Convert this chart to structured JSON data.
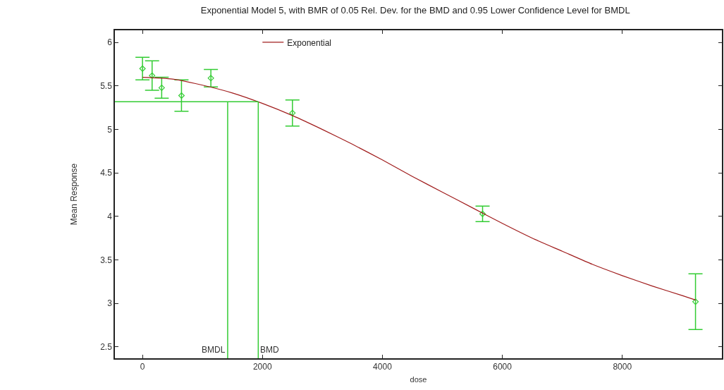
{
  "chart_data": {
    "type": "line",
    "title": "Exponential Model 5, with BMR of 0.05 Rel. Dev. for the BMD and 0.95 Lower Confidence Level for BMDL",
    "xlabel": "dose",
    "ylabel": "Mean Response",
    "xlim": [
      -460,
      9660
    ],
    "xticks": [
      0,
      2000,
      4000,
      6000,
      8000
    ],
    "ylim": [
      2.37,
      6.14
    ],
    "yticks": [
      2.5,
      3,
      3.5,
      4,
      4.5,
      5,
      5.5,
      6
    ],
    "series": [
      {
        "type": "scatter",
        "marker": "diamond",
        "color": "#33cc33",
        "x": [
          0,
          160,
          320,
          650,
          1140,
          2500,
          5670,
          9220
        ],
        "values": [
          5.7,
          5.62,
          5.48,
          5.39,
          5.59,
          5.19,
          4.03,
          3.02
        ],
        "errors": [
          0.13,
          0.17,
          0.12,
          0.18,
          0.1,
          0.15,
          0.09,
          0.32
        ]
      },
      {
        "name": "Exponential",
        "color": "#a01c1c",
        "x": [
          0,
          500,
          1000,
          1500,
          2000,
          2500,
          3000,
          3500,
          4000,
          4500,
          5000,
          5500,
          6000,
          6500,
          7000,
          7500,
          8000,
          8500,
          9000,
          9220
        ],
        "values": [
          5.6,
          5.58,
          5.51,
          5.42,
          5.3,
          5.16,
          5.0,
          4.83,
          4.65,
          4.46,
          4.28,
          4.1,
          3.92,
          3.75,
          3.6,
          3.45,
          3.32,
          3.2,
          3.09,
          3.04
        ]
      }
    ],
    "ref_lines": [
      {
        "axis": "y",
        "value": 5.32,
        "color": "#33cc33"
      },
      {
        "axis": "x",
        "value": 1420,
        "label": "BMDL",
        "color": "#33cc33"
      },
      {
        "axis": "x",
        "value": 1930,
        "label": "BMD",
        "color": "#33cc33"
      }
    ],
    "legend": "top"
  }
}
